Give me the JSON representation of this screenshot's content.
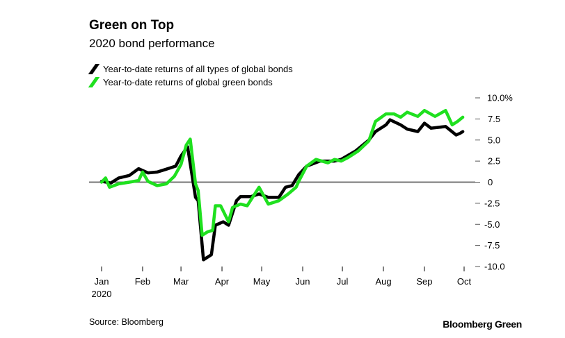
{
  "chart_data": {
    "type": "line",
    "title": "Green on Top",
    "subtitle": "2020 bond performance",
    "xlabel": "",
    "ylabel": "",
    "x_unit": "day of year 2020 (0 = Jan 1)",
    "xlim": [
      0,
      274
    ],
    "ylim": [
      -10,
      10
    ],
    "y_ticks": [
      10,
      7.5,
      5,
      2.5,
      0,
      -2.5,
      -5,
      -7.5,
      -10
    ],
    "y_tick_labels": [
      "10.0%",
      "7.5",
      "5.0",
      "2.5",
      "0",
      "-2.5",
      "-5.0",
      "-7.5",
      "-10.0"
    ],
    "x_ticks": [
      0,
      31,
      60,
      91,
      121,
      152,
      182,
      213,
      244,
      274
    ],
    "x_tick_labels": [
      "Jan",
      "Feb",
      "Mar",
      "Apr",
      "May",
      "Jun",
      "Jul",
      "Aug",
      "Sep",
      "Oct"
    ],
    "x_year_label": "2020",
    "legend_position": "top-left",
    "series": [
      {
        "name": "Year-to-date returns of all types of global bonds",
        "color": "#000000",
        "x": [
          0,
          7,
          13,
          21,
          28,
          35,
          42,
          48,
          56,
          60,
          65,
          71,
          73,
          77,
          83,
          86,
          92,
          96,
          102,
          105,
          113,
          119,
          126,
          134,
          139,
          144,
          149,
          155,
          165,
          176,
          181,
          192,
          202,
          207,
          215,
          218,
          226,
          231,
          239,
          244,
          249,
          260,
          268,
          271,
          273
        ],
        "y": [
          0.1,
          -0.1,
          0.5,
          0.8,
          1.6,
          1.1,
          1.2,
          1.5,
          1.9,
          3.1,
          4.2,
          -1.8,
          -2.2,
          -9.2,
          -8.6,
          -5.1,
          -4.7,
          -5.1,
          -2.2,
          -1.7,
          -1.7,
          -1.4,
          -1.8,
          -1.8,
          -0.6,
          -0.4,
          0.9,
          1.9,
          2.5,
          2.5,
          2.7,
          3.7,
          5.0,
          6.0,
          6.8,
          7.4,
          6.8,
          6.3,
          6.0,
          7.0,
          6.4,
          6.6,
          5.6,
          5.8,
          6.0
        ]
      },
      {
        "name": "Year-to-date returns of global green bonds",
        "color": "#1FE01F",
        "x": [
          0,
          3,
          6,
          13,
          21,
          28,
          31,
          35,
          42,
          49,
          55,
          60,
          64,
          67,
          71,
          73,
          76,
          80,
          84,
          86,
          90,
          96,
          99,
          105,
          110,
          119,
          126,
          134,
          141,
          147,
          149,
          155,
          162,
          171,
          176,
          181,
          186,
          194,
          202,
          207,
          215,
          221,
          226,
          231,
          239,
          244,
          252,
          260,
          265,
          269,
          273
        ],
        "y": [
          0,
          0.5,
          -0.6,
          -0.2,
          0,
          0.2,
          1.2,
          0.1,
          -0.4,
          -0.2,
          0.7,
          2.1,
          4.4,
          5.1,
          -0.2,
          -1.0,
          -6.3,
          -5.9,
          -5.7,
          -2.8,
          -2.8,
          -4.7,
          -3.0,
          -2.6,
          -2.8,
          -0.6,
          -2.6,
          -2.2,
          -1.4,
          -0.6,
          0.1,
          1.9,
          2.7,
          2.3,
          2.7,
          2.5,
          2.9,
          3.7,
          4.9,
          7.2,
          8.1,
          8.1,
          7.7,
          8.3,
          7.8,
          8.5,
          7.8,
          8.5,
          6.8,
          7.2,
          7.7
        ]
      }
    ],
    "source": "Source: Bloomberg",
    "brand": "Bloomberg Green"
  }
}
